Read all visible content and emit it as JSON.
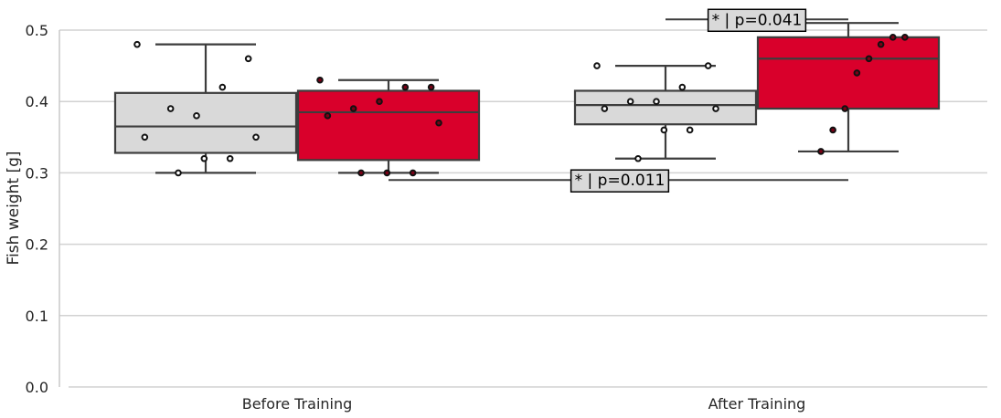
{
  "chart_data": {
    "type": "box",
    "title": "",
    "xlabel": "",
    "ylabel": "Fish weight [g]",
    "ylim": [
      0.0,
      0.5
    ],
    "yticks": [
      "0.0",
      "0.1",
      "0.2",
      "0.3",
      "0.4",
      "0.5"
    ],
    "grid": "horizontal",
    "categories": [
      "Before Training",
      "After Training"
    ],
    "series": [
      {
        "color": "#d9d9d9",
        "boxes": [
          {
            "whisker_low": 0.3,
            "q1": 0.328,
            "median": 0.365,
            "q3": 0.412,
            "whisker_high": 0.48,
            "points": [
              0.48,
              0.46,
              0.42,
              0.38,
              0.39,
              0.35,
              0.35,
              0.32,
              0.32,
              0.3
            ]
          },
          {
            "whisker_low": 0.32,
            "q1": 0.368,
            "median": 0.395,
            "q3": 0.415,
            "whisker_high": 0.45,
            "points": [
              0.45,
              0.45,
              0.42,
              0.4,
              0.4,
              0.39,
              0.39,
              0.36,
              0.36,
              0.32
            ]
          }
        ]
      },
      {
        "color": "#d9002b",
        "boxes": [
          {
            "whisker_low": 0.3,
            "q1": 0.318,
            "median": 0.385,
            "q3": 0.415,
            "whisker_high": 0.43,
            "points": [
              0.43,
              0.42,
              0.42,
              0.4,
              0.39,
              0.38,
              0.37,
              0.3,
              0.3,
              0.3
            ]
          },
          {
            "whisker_low": 0.33,
            "q1": 0.39,
            "median": 0.46,
            "q3": 0.49,
            "whisker_high": 0.51,
            "points": [
              0.51,
              0.49,
              0.49,
              0.48,
              0.46,
              0.44,
              0.39,
              0.36,
              0.33
            ]
          }
        ]
      }
    ],
    "annotations": [
      {
        "text": "* | p=0.041",
        "y": 0.515,
        "from": "After Training, first box",
        "to": "After Training, second box"
      },
      {
        "text": "* | p=0.011",
        "y": 0.29,
        "from": "Before Training, second box",
        "to": "After Training, second box"
      }
    ]
  }
}
